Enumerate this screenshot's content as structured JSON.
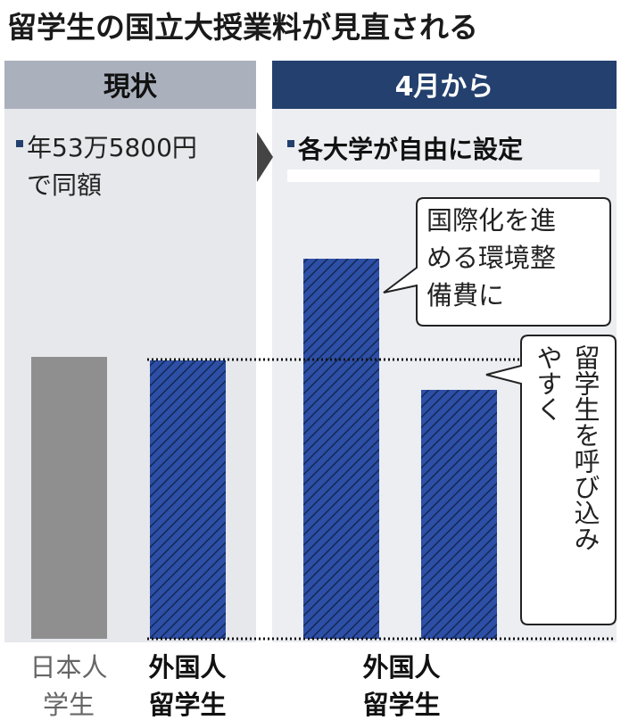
{
  "title": "留学生の国立大授業料が見直される",
  "panels": [
    {
      "header": "現状",
      "note": [
        "年53万5800円",
        "で同額"
      ]
    },
    {
      "header": "4月から",
      "note": [
        "各大学が自由に設定"
      ]
    }
  ],
  "callouts": [
    {
      "lines": [
        "国際化を進",
        "める環境整",
        "備費に"
      ]
    },
    {
      "lines": [
        "留学生を呼び込み",
        "やすく"
      ]
    }
  ],
  "labels": [
    [
      "日本人",
      "学生"
    ],
    [
      "外国人",
      "留学生"
    ],
    [
      "外国人",
      "留学生"
    ]
  ]
}
